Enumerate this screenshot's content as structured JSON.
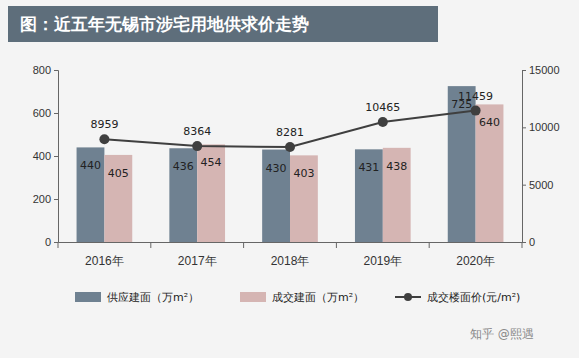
{
  "chart_data": {
    "type": "bar",
    "title": "图：近五年无锡市涉宅用地供求价走势",
    "categories": [
      "2016年",
      "2017年",
      "2018年",
      "2019年",
      "2020年"
    ],
    "series": [
      {
        "name": "供应建面（万m²）",
        "color": "#6f8191",
        "values": [
          440,
          436,
          430,
          431,
          725
        ]
      },
      {
        "name": "成交建面（万m²）",
        "color": "#d5b5b3",
        "values": [
          405,
          454,
          403,
          438,
          640
        ]
      },
      {
        "name": "成交楼面价(元/m²)",
        "type": "line",
        "axis": "y2",
        "color": "#3f3f3f",
        "marker": "circle",
        "values": [
          8959,
          8364,
          8281,
          10465,
          11459
        ]
      }
    ],
    "ylim": [
      0,
      800
    ],
    "yticks": [
      0,
      200,
      400,
      600,
      800
    ],
    "y2lim": [
      0,
      15000
    ],
    "y2ticks": [
      0,
      5000,
      10000,
      15000
    ],
    "data_labels": true,
    "grid": false,
    "legend": "bottom",
    "annotations": [
      "知乎 @熙遇"
    ]
  }
}
